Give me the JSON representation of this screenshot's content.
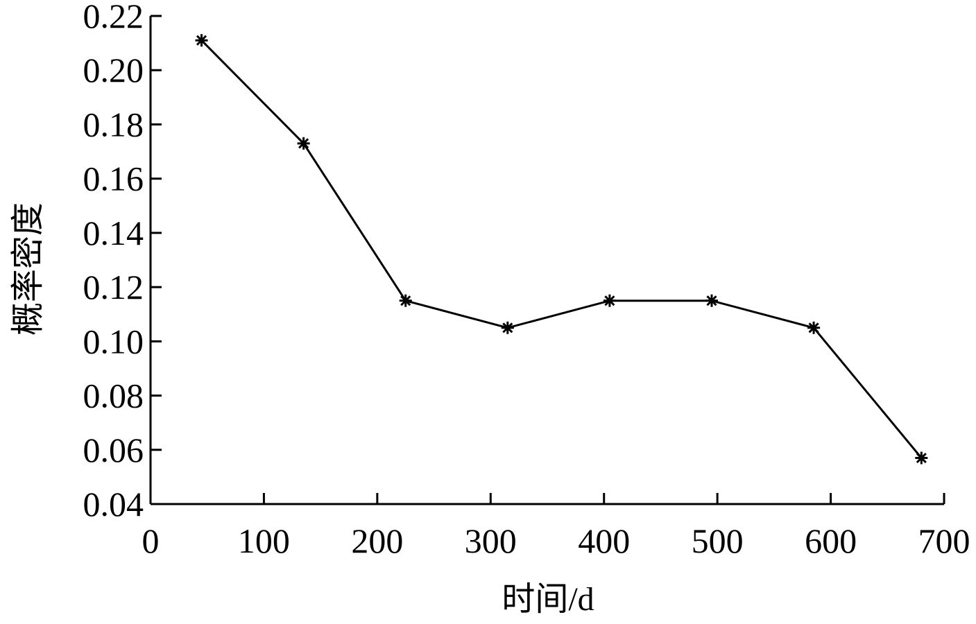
{
  "chart_data": {
    "type": "line",
    "title": "",
    "xlabel": "时间/d",
    "ylabel": "概率密度",
    "xlim": [
      0,
      700
    ],
    "ylim": [
      0.04,
      0.22
    ],
    "x_ticks": [
      0,
      100,
      200,
      300,
      400,
      500,
      600,
      700
    ],
    "x_tick_labels": [
      "0",
      "100",
      "200",
      "300",
      "400",
      "500",
      "600",
      "700"
    ],
    "y_ticks": [
      0.04,
      0.06,
      0.08,
      0.1,
      0.12,
      0.14,
      0.16,
      0.18,
      0.2,
      0.22
    ],
    "y_tick_labels": [
      "0.04",
      "0.06",
      "0.08",
      "0.10",
      "0.12",
      "0.14",
      "0.16",
      "0.18",
      "0.20",
      "0.22"
    ],
    "grid": false,
    "marker": "asterisk",
    "series": [
      {
        "x": [
          45,
          135,
          225,
          315,
          405,
          495,
          585,
          680
        ],
        "values": [
          0.211,
          0.173,
          0.115,
          0.105,
          0.115,
          0.115,
          0.105,
          0.057
        ]
      }
    ],
    "colors": {
      "axis": "#000000",
      "series": "#000000",
      "background": "#ffffff"
    }
  }
}
